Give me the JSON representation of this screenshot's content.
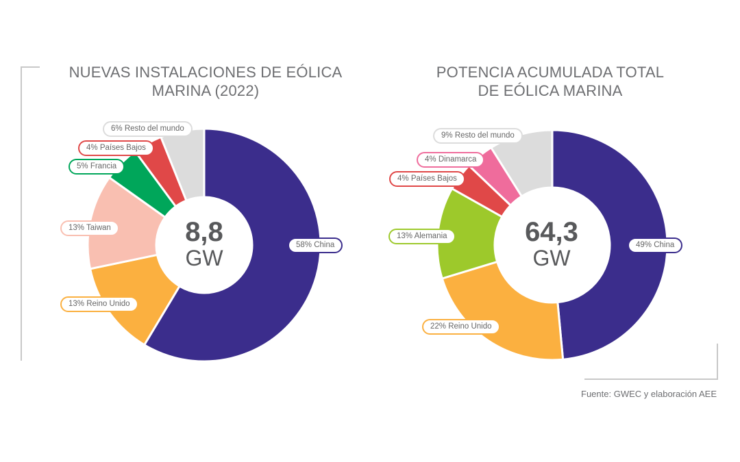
{
  "colors": {
    "China": "#3b2d8c",
    "Reino Unido": "#fbb040",
    "Taiwan": "#f9bfb1",
    "Francia": "#00a65a",
    "Paises Bajos": "#e04848",
    "Resto del mundo": "#dcdcdc",
    "Alemania": "#9dc92b",
    "Dinamarca": "#ef6c9c"
  },
  "chart_data": [
    {
      "type": "pie",
      "title": "NUEVAS INSTALACIONES DE EÓLICA MARINA  (2022)",
      "title_lines": [
        "NUEVAS INSTALACIONES DE EÓLICA",
        "MARINA  (2022)"
      ],
      "center_value": "8,8",
      "center_unit": "GW",
      "slices": [
        {
          "name": "China",
          "value": 58,
          "label": "58% China"
        },
        {
          "name": "Reino Unido",
          "value": 13,
          "label": "13% Reino Unido"
        },
        {
          "name": "Taiwan",
          "value": 13,
          "label": "13% Taiwan"
        },
        {
          "name": "Francia",
          "value": 5,
          "label": "5% Francia"
        },
        {
          "name": "Paises Bajos",
          "value": 4,
          "label": "4% Países Bajos"
        },
        {
          "name": "Resto del mundo",
          "value": 6,
          "label": "6% Resto del mundo"
        }
      ]
    },
    {
      "type": "pie",
      "title": "POTENCIA ACUMULADA TOTAL DE EÓLICA MARINA",
      "title_lines": [
        "POTENCIA ACUMULADA TOTAL",
        "DE EÓLICA MARINA"
      ],
      "center_value": "64,3",
      "center_unit": "GW",
      "slices": [
        {
          "name": "China",
          "value": 49,
          "label": "49% China"
        },
        {
          "name": "Reino Unido",
          "value": 22,
          "label": "22% Reino Unido"
        },
        {
          "name": "Alemania",
          "value": 13,
          "label": "13% Alemania"
        },
        {
          "name": "Paises Bajos",
          "value": 4,
          "label": "4% Países Bajos"
        },
        {
          "name": "Dinamarca",
          "value": 4,
          "label": "4% Dinamarca"
        },
        {
          "name": "Resto del mundo",
          "value": 9,
          "label": "9% Resto del mundo"
        }
      ]
    }
  ],
  "source": "Fuente: GWEC y elaboración AEE"
}
